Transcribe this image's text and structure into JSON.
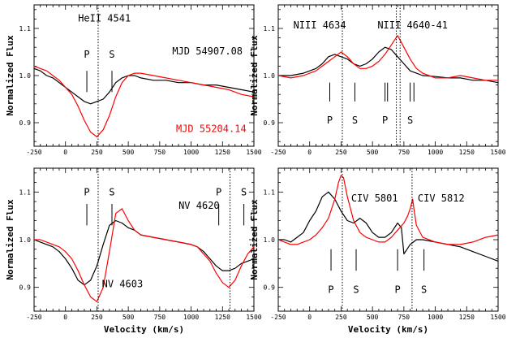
{
  "figure": {
    "colors": {
      "black_spectrum": "#000000",
      "red_spectrum": "#ff0000"
    }
  },
  "chart_data": [
    {
      "type": "line",
      "panel": "top-left",
      "xlabel": "",
      "ylabel": "Normalized Flux",
      "xlim": [
        -250,
        1500
      ],
      "ylim": [
        0.85,
        1.15
      ],
      "xticks": [
        -250,
        0,
        250,
        500,
        750,
        1000,
        1250,
        1500
      ],
      "yticks": [
        0.9,
        1.0,
        1.1
      ],
      "ytick_labels": [
        "0.9",
        "1.0",
        "1.1"
      ],
      "minor_x_step": 50,
      "minor_y_step": 0.02,
      "annotations": [
        {
          "text": "HeII 4541",
          "x": 100,
          "y": 1.115,
          "anchor": "start",
          "color": "#000000"
        },
        {
          "text": "MJD 54907.08",
          "x": 850,
          "y": 1.045,
          "anchor": "start",
          "color": "#000000"
        },
        {
          "text": "MJD 55204.14",
          "x": 880,
          "y": 0.88,
          "anchor": "start",
          "color": "#ff0000"
        }
      ],
      "markers": [
        {
          "label": "P",
          "x": 170,
          "from": 0.965,
          "to": 1.01,
          "label_y": 1.045
        },
        {
          "label": "S",
          "x": 370,
          "from": 0.965,
          "to": 1.01,
          "label_y": 1.045
        }
      ],
      "vlines": [
        260
      ],
      "series": [
        {
          "color": "#000000",
          "x": [
            -250,
            -200,
            -150,
            -100,
            -50,
            0,
            50,
            100,
            150,
            200,
            250,
            300,
            350,
            400,
            450,
            500,
            550,
            600,
            700,
            800,
            900,
            1000,
            1100,
            1200,
            1300,
            1400,
            1500
          ],
          "y": [
            1.015,
            1.01,
            1.0,
            0.995,
            0.985,
            0.975,
            0.965,
            0.955,
            0.945,
            0.94,
            0.945,
            0.95,
            0.965,
            0.985,
            0.995,
            1.0,
            1.0,
            0.995,
            0.99,
            0.99,
            0.985,
            0.985,
            0.98,
            0.98,
            0.975,
            0.97,
            0.965
          ]
        },
        {
          "color": "#ff0000",
          "x": [
            -250,
            -200,
            -150,
            -100,
            -50,
            0,
            50,
            100,
            150,
            200,
            250,
            300,
            350,
            400,
            450,
            500,
            550,
            600,
            700,
            800,
            900,
            1000,
            1100,
            1200,
            1300,
            1400,
            1500
          ],
          "y": [
            1.02,
            1.015,
            1.01,
            1.0,
            0.99,
            0.975,
            0.96,
            0.935,
            0.905,
            0.88,
            0.87,
            0.885,
            0.915,
            0.955,
            0.985,
            1.0,
            1.005,
            1.005,
            1.0,
            0.995,
            0.99,
            0.985,
            0.98,
            0.975,
            0.97,
            0.96,
            0.955
          ]
        }
      ]
    },
    {
      "type": "line",
      "panel": "top-right",
      "xlabel": "",
      "ylabel": "Normalized Flux",
      "xlim": [
        -250,
        1500
      ],
      "ylim": [
        0.85,
        1.15
      ],
      "xticks": [
        -250,
        0,
        250,
        500,
        750,
        1000,
        1250,
        1500
      ],
      "yticks": [
        0.9,
        1.0,
        1.1
      ],
      "ytick_labels": [
        "0.9",
        "1.0",
        "1.1"
      ],
      "minor_x_step": 50,
      "minor_y_step": 0.02,
      "annotations": [
        {
          "text": "NIII 4634",
          "x": -130,
          "y": 1.1,
          "anchor": "start",
          "color": "#000000"
        },
        {
          "text": "NIII 4640-41",
          "x": 540,
          "y": 1.1,
          "anchor": "start",
          "color": "#000000"
        }
      ],
      "markers": [
        {
          "label": "P",
          "x": 160,
          "from": 0.945,
          "to": 0.985,
          "label_y": 0.905
        },
        {
          "label": "S",
          "x": 360,
          "from": 0.945,
          "to": 0.985,
          "label_y": 0.905
        },
        {
          "label": "P",
          "x": 600,
          "from": 0.945,
          "to": 0.985,
          "label_y": 0.905
        },
        {
          "label": "P",
          "x": 620,
          "from": 0.945,
          "to": 0.985,
          "label_y": null
        },
        {
          "label": "S",
          "x": 800,
          "from": 0.945,
          "to": 0.985,
          "label_y": 0.905
        },
        {
          "label": "S",
          "x": 830,
          "from": 0.945,
          "to": 0.985,
          "label_y": null
        }
      ],
      "vlines": [
        260,
        690,
        720
      ],
      "series": [
        {
          "color": "#000000",
          "x": [
            -250,
            -150,
            -50,
            50,
            100,
            150,
            200,
            250,
            300,
            350,
            400,
            450,
            500,
            550,
            600,
            650,
            700,
            750,
            800,
            850,
            900,
            1000,
            1100,
            1200,
            1300,
            1400,
            1500
          ],
          "y": [
            1.0,
            1.0,
            1.005,
            1.015,
            1.025,
            1.04,
            1.045,
            1.04,
            1.035,
            1.025,
            1.02,
            1.025,
            1.035,
            1.05,
            1.06,
            1.055,
            1.04,
            1.025,
            1.01,
            1.005,
            1.0,
            0.998,
            0.995,
            0.995,
            0.99,
            0.99,
            0.985
          ]
        },
        {
          "color": "#ff0000",
          "x": [
            -250,
            -150,
            -50,
            50,
            100,
            150,
            200,
            250,
            300,
            350,
            400,
            450,
            500,
            550,
            600,
            650,
            700,
            750,
            800,
            850,
            900,
            1000,
            1100,
            1200,
            1300,
            1400,
            1500
          ],
          "y": [
            1.0,
            0.995,
            1.0,
            1.01,
            1.02,
            1.03,
            1.04,
            1.05,
            1.04,
            1.025,
            1.015,
            1.015,
            1.02,
            1.03,
            1.045,
            1.065,
            1.085,
            1.06,
            1.035,
            1.015,
            1.005,
            0.995,
            0.995,
            1.0,
            0.995,
            0.99,
            0.99
          ]
        }
      ]
    },
    {
      "type": "line",
      "panel": "bottom-left",
      "xlabel": "Velocity (km/s)",
      "ylabel": "Normalized Flux",
      "xlim": [
        -250,
        1500
      ],
      "ylim": [
        0.85,
        1.15
      ],
      "xticks": [
        -250,
        0,
        250,
        500,
        750,
        1000,
        1250,
        1500
      ],
      "yticks": [
        0.9,
        1.0,
        1.1
      ],
      "ytick_labels": [
        "0.9",
        "1.0",
        "1.1"
      ],
      "minor_x_step": 50,
      "minor_y_step": 0.02,
      "annotations": [
        {
          "text": "NV 4620",
          "x": 900,
          "y": 1.065,
          "anchor": "start",
          "color": "#000000"
        },
        {
          "text": "NV 4603",
          "x": 290,
          "y": 0.9,
          "anchor": "start",
          "color": "#000000"
        }
      ],
      "markers": [
        {
          "label": "P",
          "x": 170,
          "from": 1.03,
          "to": 1.075,
          "label_y": 1.1
        },
        {
          "label": "S",
          "x": 370,
          "from": 1.03,
          "to": 1.075,
          "label_y": 1.1
        },
        {
          "label": "P",
          "x": 1220,
          "from": 1.03,
          "to": 1.075,
          "label_y": 1.1
        },
        {
          "label": "S",
          "x": 1420,
          "from": 1.03,
          "to": 1.075,
          "label_y": 1.1
        }
      ],
      "vlines": [
        260,
        1310
      ],
      "series": [
        {
          "color": "#000000",
          "x": [
            -250,
            -200,
            -150,
            -100,
            -50,
            0,
            50,
            100,
            150,
            200,
            250,
            300,
            350,
            400,
            450,
            500,
            550,
            600,
            700,
            800,
            900,
            1000,
            1050,
            1100,
            1150,
            1200,
            1250,
            1300,
            1350,
            1400,
            1450,
            1500
          ],
          "y": [
            1.0,
            0.995,
            0.99,
            0.985,
            0.975,
            0.96,
            0.94,
            0.915,
            0.905,
            0.915,
            0.945,
            0.99,
            1.03,
            1.04,
            1.035,
            1.025,
            1.02,
            1.01,
            1.005,
            1.0,
            0.995,
            0.99,
            0.985,
            0.975,
            0.96,
            0.945,
            0.935,
            0.935,
            0.94,
            0.95,
            0.955,
            0.96
          ]
        },
        {
          "color": "#ff0000",
          "x": [
            -250,
            -200,
            -150,
            -100,
            -50,
            0,
            50,
            100,
            150,
            200,
            250,
            300,
            350,
            400,
            450,
            500,
            550,
            600,
            700,
            800,
            900,
            1000,
            1050,
            1100,
            1150,
            1200,
            1250,
            1300,
            1350,
            1400,
            1450,
            1500
          ],
          "y": [
            1.0,
            1.0,
            0.995,
            0.99,
            0.985,
            0.975,
            0.96,
            0.935,
            0.905,
            0.88,
            0.87,
            0.9,
            0.975,
            1.055,
            1.065,
            1.04,
            1.02,
            1.01,
            1.005,
            1.0,
            0.995,
            0.99,
            0.985,
            0.97,
            0.955,
            0.93,
            0.91,
            0.9,
            0.915,
            0.945,
            0.97,
            0.985
          ]
        }
      ]
    },
    {
      "type": "line",
      "panel": "bottom-right",
      "xlabel": "Velocity (km/s)",
      "ylabel": "Normalized Flux",
      "xlim": [
        -250,
        1500
      ],
      "ylim": [
        0.85,
        1.15
      ],
      "xticks": [
        -250,
        0,
        250,
        500,
        750,
        1000,
        1250,
        1500
      ],
      "yticks": [
        0.9,
        1.0,
        1.1
      ],
      "ytick_labels": [
        "0.9",
        "1.0",
        "1.1"
      ],
      "minor_x_step": 50,
      "minor_y_step": 0.02,
      "annotations": [
        {
          "text": "CIV 5801",
          "x": 330,
          "y": 1.08,
          "anchor": "start",
          "color": "#000000"
        },
        {
          "text": "CIV 5812",
          "x": 860,
          "y": 1.08,
          "anchor": "start",
          "color": "#000000"
        }
      ],
      "markers": [
        {
          "label": "P",
          "x": 170,
          "from": 0.935,
          "to": 0.98,
          "label_y": 0.895
        },
        {
          "label": "S",
          "x": 370,
          "from": 0.935,
          "to": 0.98,
          "label_y": 0.895
        },
        {
          "label": "P",
          "x": 700,
          "from": 0.935,
          "to": 0.98,
          "label_y": 0.895
        },
        {
          "label": "S",
          "x": 910,
          "from": 0.935,
          "to": 0.98,
          "label_y": 0.895
        }
      ],
      "vlines": [
        260,
        815
      ],
      "series": [
        {
          "color": "#000000",
          "x": [
            -250,
            -200,
            -150,
            -100,
            -50,
            0,
            50,
            100,
            150,
            200,
            250,
            300,
            350,
            400,
            450,
            500,
            550,
            600,
            650,
            700,
            730,
            750,
            800,
            850,
            900,
            1000,
            1100,
            1200,
            1300,
            1400,
            1500
          ],
          "y": [
            1.0,
            1.0,
            0.995,
            1.005,
            1.015,
            1.04,
            1.06,
            1.09,
            1.1,
            1.085,
            1.06,
            1.04,
            1.035,
            1.045,
            1.035,
            1.015,
            1.005,
            1.005,
            1.015,
            1.035,
            1.025,
            0.97,
            0.99,
            1.0,
            1.0,
            0.995,
            0.99,
            0.985,
            0.975,
            0.965,
            0.955
          ]
        },
        {
          "color": "#ff0000",
          "x": [
            -250,
            -200,
            -150,
            -100,
            -50,
            0,
            50,
            100,
            150,
            200,
            230,
            250,
            270,
            300,
            350,
            400,
            450,
            500,
            550,
            600,
            650,
            700,
            750,
            780,
            800,
            820,
            830,
            850,
            900,
            1000,
            1100,
            1200,
            1300,
            1400,
            1500
          ],
          "y": [
            1.0,
            0.995,
            0.99,
            0.99,
            0.995,
            1.0,
            1.01,
            1.025,
            1.045,
            1.085,
            1.12,
            1.135,
            1.13,
            1.09,
            1.04,
            1.015,
            1.005,
            1.0,
            0.995,
            0.995,
            1.005,
            1.02,
            1.035,
            1.05,
            1.065,
            1.085,
            1.065,
            1.03,
            1.005,
            0.995,
            0.99,
            0.99,
            0.995,
            1.005,
            1.01
          ]
        }
      ]
    }
  ]
}
